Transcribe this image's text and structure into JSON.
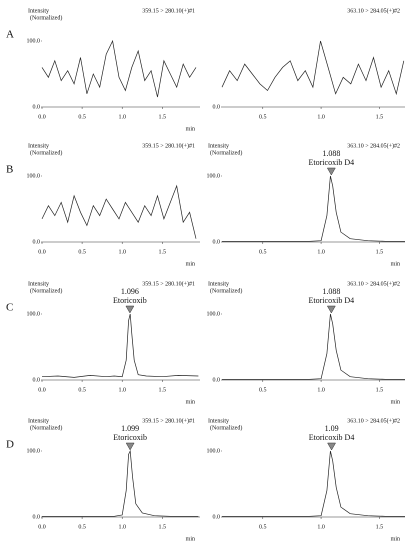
{
  "chart_data": [
    {
      "type": "line",
      "panel_label": "A",
      "ylabel_lines": [
        "Intensity",
        "(Normalized)"
      ],
      "title": "359.15 > 280.10(+)#1",
      "xlabel": "min",
      "x": [
        0,
        0.08,
        0.16,
        0.24,
        0.32,
        0.4,
        0.48,
        0.56,
        0.64,
        0.72,
        0.8,
        0.88,
        0.96,
        1.04,
        1.12,
        1.2,
        1.28,
        1.36,
        1.44,
        1.52,
        1.6,
        1.68,
        1.76,
        1.84,
        1.92
      ],
      "values": [
        60,
        45,
        70,
        40,
        55,
        35,
        75,
        20,
        50,
        30,
        80,
        100,
        45,
        25,
        60,
        85,
        40,
        55,
        15,
        70,
        50,
        30,
        65,
        45,
        60
      ],
      "color": "#222222",
      "xlim": [
        0,
        1.97
      ],
      "ylim": [
        0,
        100
      ],
      "xticks": [
        {
          "value": 0,
          "label": "0.0"
        },
        0.5,
        {
          "value": 1,
          "label": "1.0"
        },
        1.5
      ],
      "yticks": [
        {
          "value": 0,
          "label": "0.0"
        },
        {
          "value": 100,
          "label": "100.0"
        }
      ]
    },
    {
      "type": "line",
      "title": "363.10 > 284.05(+)#2",
      "x": [
        0.15,
        0.215,
        0.28,
        0.345,
        0.41,
        0.475,
        0.54,
        0.605,
        0.67,
        0.735,
        0.8,
        0.865,
        0.93,
        0.995,
        1.06,
        1.125,
        1.19,
        1.255,
        1.32,
        1.385,
        1.45,
        1.515,
        1.58,
        1.645,
        1.71
      ],
      "values": [
        30,
        55,
        40,
        65,
        50,
        35,
        25,
        45,
        60,
        70,
        40,
        55,
        30,
        100,
        60,
        20,
        45,
        35,
        65,
        40,
        75,
        30,
        55,
        20,
        70
      ],
      "color": "#222222",
      "xlim": [
        0.15,
        1.72
      ],
      "ylim": [
        0,
        100
      ],
      "xticks": [
        0.5,
        {
          "value": 1,
          "label": "1.0"
        },
        1.5
      ],
      "yticks": [
        {
          "value": 0,
          "label": "0.0"
        }
      ]
    },
    {
      "type": "line",
      "panel_label": "B",
      "ylabel_lines": [
        "Intensity",
        "(Normalized)"
      ],
      "title": "359.15 > 280.10(+)#1",
      "xlabel": "min",
      "x": [
        0,
        0.08,
        0.16,
        0.24,
        0.32,
        0.4,
        0.48,
        0.56,
        0.64,
        0.72,
        0.8,
        0.88,
        0.96,
        1.04,
        1.12,
        1.2,
        1.28,
        1.36,
        1.44,
        1.52,
        1.6,
        1.68,
        1.76,
        1.84,
        1.92
      ],
      "values": [
        35,
        55,
        40,
        60,
        30,
        70,
        45,
        25,
        55,
        40,
        65,
        50,
        35,
        60,
        45,
        30,
        55,
        40,
        70,
        35,
        60,
        85,
        30,
        45,
        5
      ],
      "color": "#222222",
      "xlim": [
        0,
        1.97
      ],
      "ylim": [
        0,
        100
      ],
      "xticks": [
        {
          "value": 0,
          "label": "0.0"
        },
        0.5,
        {
          "value": 1,
          "label": "1.0"
        },
        1.5
      ],
      "yticks": [
        {
          "value": 0,
          "label": "0.0"
        },
        {
          "value": 100,
          "label": "100.0"
        }
      ]
    },
    {
      "type": "line",
      "ylabel_lines": [
        "Intensity",
        "(Normalized)"
      ],
      "title": "363.10 > 284.05(+)#2",
      "xlabel": "min",
      "peak_time": 1.088,
      "peak_name": "Etoricoxib D4",
      "x": [
        0.15,
        0.5,
        0.9,
        1.0,
        1.05,
        1.08,
        1.1,
        1.13,
        1.17,
        1.25,
        1.4,
        1.55,
        1.72
      ],
      "values": [
        1,
        1,
        1,
        2,
        40,
        100,
        85,
        45,
        15,
        5,
        2,
        1,
        1
      ],
      "color": "#222222",
      "xlim": [
        0.15,
        1.72
      ],
      "ylim": [
        0,
        100
      ],
      "xticks": [
        0.5,
        {
          "value": 1,
          "label": "1.0"
        },
        1.5
      ],
      "yticks": [
        {
          "value": 0,
          "label": "0.0"
        },
        {
          "value": 100,
          "label": "100.0"
        }
      ]
    },
    {
      "type": "line",
      "panel_label": "C",
      "ylabel_lines": [
        "Intensity",
        "(Normalized)"
      ],
      "title": "359.15 > 280.10(+)#1",
      "xlabel": "min",
      "peak_time": 1.096,
      "peak_name": "Etoricoxib",
      "x": [
        0,
        0.2,
        0.4,
        0.6,
        0.8,
        0.9,
        1.0,
        1.05,
        1.08,
        1.1,
        1.12,
        1.15,
        1.2,
        1.3,
        1.5,
        1.7,
        1.95
      ],
      "values": [
        5,
        6,
        4,
        7,
        5,
        6,
        5,
        30,
        90,
        100,
        70,
        30,
        8,
        6,
        5,
        7,
        6
      ],
      "color": "#222222",
      "xlim": [
        0,
        1.97
      ],
      "ylim": [
        0,
        100
      ],
      "xticks": [
        {
          "value": 0,
          "label": "0.0"
        },
        0.5,
        {
          "value": 1,
          "label": "1.0"
        },
        1.5
      ],
      "yticks": [
        {
          "value": 0,
          "label": "0.0"
        },
        {
          "value": 100,
          "label": "100.0"
        }
      ]
    },
    {
      "type": "line",
      "ylabel_lines": [
        "Intensity",
        "(Normalized)"
      ],
      "title": "363.10 > 284.05(+)#2",
      "xlabel": "min",
      "peak_time": 1.088,
      "peak_name": "Etoricoxib D4",
      "x": [
        0.15,
        0.5,
        0.9,
        1.0,
        1.05,
        1.08,
        1.1,
        1.13,
        1.17,
        1.25,
        1.4,
        1.55,
        1.72
      ],
      "values": [
        1,
        1,
        1,
        2,
        40,
        100,
        85,
        45,
        15,
        5,
        2,
        1,
        1
      ],
      "color": "#222222",
      "xlim": [
        0.15,
        1.72
      ],
      "ylim": [
        0,
        100
      ],
      "xticks": [
        0.5,
        {
          "value": 1,
          "label": "1.0"
        },
        1.5
      ],
      "yticks": [
        {
          "value": 0,
          "label": "0.0"
        },
        {
          "value": 100,
          "label": "100.0"
        }
      ]
    },
    {
      "type": "line",
      "panel_label": "D",
      "ylabel_lines": [
        "Intensity",
        "(Normalized)"
      ],
      "title": "359.15 > 280.10(+)#1",
      "xlabel": "min",
      "peak_time": 1.099,
      "peak_name": "Etoricoxib",
      "x": [
        0,
        0.3,
        0.6,
        0.9,
        1.0,
        1.05,
        1.08,
        1.1,
        1.13,
        1.17,
        1.25,
        1.4,
        1.6,
        1.95
      ],
      "values": [
        1,
        1,
        1,
        1,
        3,
        40,
        95,
        100,
        60,
        20,
        6,
        2,
        1,
        1
      ],
      "color": "#222222",
      "xlim": [
        0,
        1.97
      ],
      "ylim": [
        0,
        100
      ],
      "xticks": [
        {
          "value": 0,
          "label": "0.0"
        },
        0.5,
        {
          "value": 1,
          "label": "1.0"
        },
        1.5
      ],
      "yticks": [
        {
          "value": 0,
          "label": "0.0"
        },
        {
          "value": 100,
          "label": "100.0"
        }
      ]
    },
    {
      "type": "line",
      "ylabel_lines": [
        "Intensity",
        "(Normalized)"
      ],
      "title": "363.10 > 284.05(+)#2",
      "xlabel": "min",
      "peak_time": 1.09,
      "peak_name": "Etoricoxib D4",
      "x": [
        0.15,
        0.5,
        0.9,
        1.0,
        1.05,
        1.08,
        1.1,
        1.13,
        1.17,
        1.25,
        1.4,
        1.55,
        1.72
      ],
      "values": [
        1,
        1,
        1,
        2,
        40,
        100,
        85,
        45,
        15,
        5,
        2,
        1,
        1
      ],
      "color": "#222222",
      "xlim": [
        0.15,
        1.72
      ],
      "ylim": [
        0,
        100
      ],
      "xticks": [
        0.5,
        {
          "value": 1,
          "label": "1.0"
        },
        1.5
      ],
      "yticks": [
        {
          "value": 0,
          "label": "0.0"
        },
        {
          "value": 100,
          "label": "100.0"
        }
      ]
    }
  ]
}
